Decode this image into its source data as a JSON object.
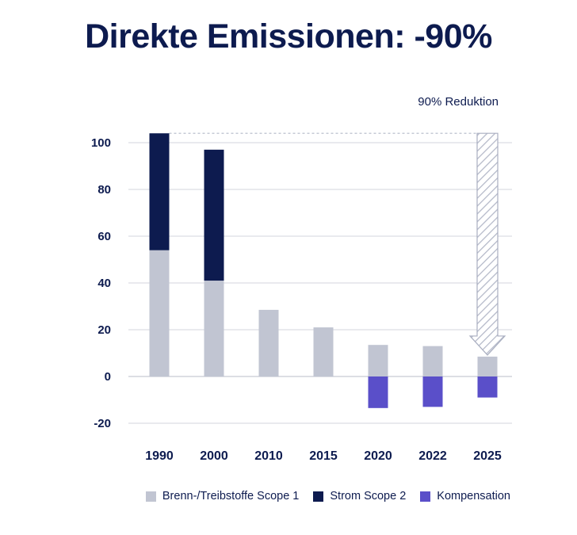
{
  "chart_data": {
    "type": "bar",
    "title": "Direkte Emissionen: -90%",
    "categories": [
      "1990",
      "2000",
      "2010",
      "2015",
      "2020",
      "2022",
      "2025"
    ],
    "series": [
      {
        "name": "Brenn-/Treibstoffe Scope 1",
        "values": [
          54,
          41,
          28.5,
          21,
          13.5,
          13,
          8.5
        ],
        "color": "#c1c5d2"
      },
      {
        "name": "Strom Scope 2",
        "values": [
          50,
          56,
          0,
          0,
          0,
          0,
          0
        ],
        "color": "#0d1b4f"
      },
      {
        "name": "Kompensation",
        "values": [
          0,
          0,
          0,
          0,
          -13.5,
          -13,
          -9
        ],
        "color": "#5a4fc9"
      }
    ],
    "yticks": [
      "100",
      "80",
      "60",
      "40",
      "20",
      "0",
      "-20"
    ],
    "ylim": [
      -20,
      100
    ],
    "annotation": {
      "text": "90% Reduktion",
      "from": 104,
      "to": 8.5,
      "category": "2025"
    },
    "stacked": true,
    "grid": true,
    "legend_position": "bottom"
  }
}
